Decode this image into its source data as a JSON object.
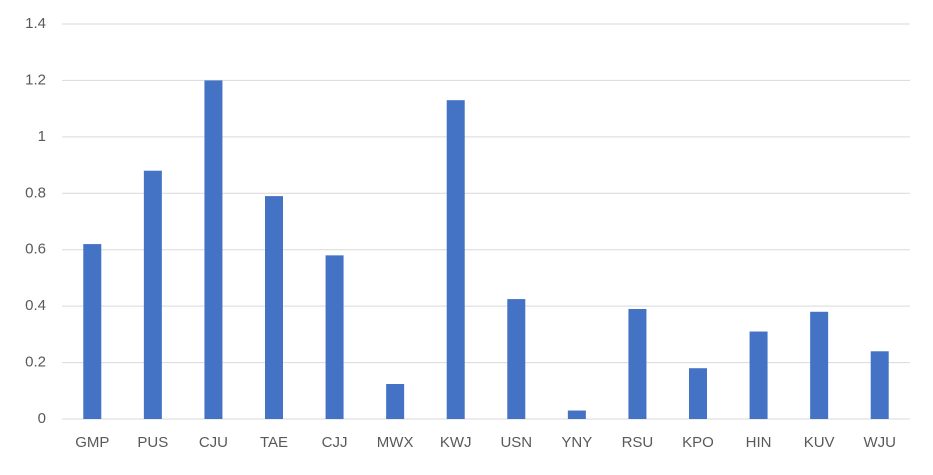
{
  "chart_data": {
    "type": "bar",
    "categories": [
      "GMP",
      "PUS",
      "CJU",
      "TAE",
      "CJJ",
      "MWX",
      "KWJ",
      "USN",
      "YNY",
      "RSU",
      "KPO",
      "HIN",
      "KUV",
      "WJU"
    ],
    "values": [
      0.62,
      0.88,
      1.2,
      0.79,
      0.58,
      0.124,
      1.13,
      0.425,
      0.03,
      0.39,
      0.18,
      0.31,
      0.38,
      0.24
    ],
    "color": "#4472c4",
    "ylim": [
      0,
      1.4
    ],
    "yticks": [
      0,
      0.2,
      0.4,
      0.6,
      0.8,
      1,
      1.2,
      1.4
    ],
    "grid": true
  }
}
